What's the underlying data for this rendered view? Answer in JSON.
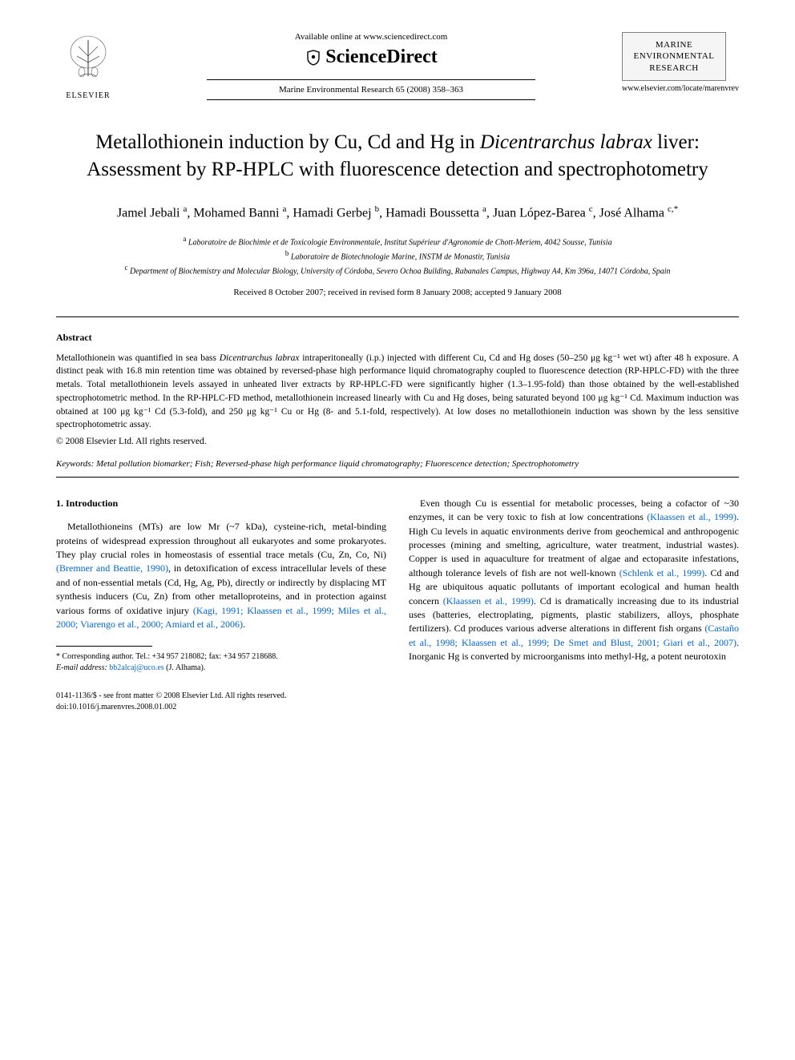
{
  "header": {
    "publisher_name": "ELSEVIER",
    "available_text": "Available online at www.sciencedirect.com",
    "sciencedirect_label": "ScienceDirect",
    "journal_reference": "Marine Environmental Research 65 (2008) 358–363",
    "journal_cover_title": "MARINE ENVIRONMENTAL RESEARCH",
    "journal_url": "www.elsevier.com/locate/marenvrev"
  },
  "article": {
    "title_pre_italic": "Metallothionein induction by Cu, Cd and Hg in ",
    "title_italic": "Dicentrarchus labrax",
    "title_post_italic": " liver: Assessment by RP-HPLC with fluorescence detection and spectrophotometry",
    "authors_html": "Jamel Jebali <sup>a</sup>, Mohamed Banni <sup>a</sup>, Hamadi Gerbej <sup>b</sup>, Hamadi Boussetta <sup>a</sup>, Juan López-Barea <sup>c</sup>, José Alhama <sup>c,*</sup>",
    "affiliations": [
      "a|Laboratoire de Biochimie et de Toxicologie Environmentale, Institut Supérieur d'Agronomie de Chott-Meriem, 4042 Sousse, Tunisia",
      "b|Laboratoire de Biotechnologie Marine, INSTM de Monastir, Tunisia",
      "c|Department of Biochemistry and Molecular Biology, University of Córdoba, Severo Ochoa Building, Rabanales Campus, Highway A4, Km 396a, 14071 Córdoba, Spain"
    ],
    "dates": "Received 8 October 2007; received in revised form 8 January 2008; accepted 9 January 2008"
  },
  "abstract": {
    "heading": "Abstract",
    "text": "Metallothionein was quantified in sea bass Dicentrarchus labrax intraperitoneally (i.p.) injected with different Cu, Cd and Hg doses (50–250 μg kg⁻¹ wet wt) after 48 h exposure. A distinct peak with 16.8 min retention time was obtained by reversed-phase high performance liquid chromatography coupled to fluorescence detection (RP-HPLC-FD) with the three metals. Total metallothionein levels assayed in unheated liver extracts by RP-HPLC-FD were significantly higher (1.3–1.95-fold) than those obtained by the well-established spectrophotometric method. In the RP-HPLC-FD method, metallothionein increased linearly with Cu and Hg doses, being saturated beyond 100 μg kg⁻¹ Cd. Maximum induction was obtained at 100 μg kg⁻¹ Cd (5.3-fold), and 250 μg kg⁻¹ Cu or Hg (8- and 5.1-fold, respectively). At low doses no metallothionein induction was shown by the less sensitive spectrophotometric assay.",
    "copyright": "© 2008 Elsevier Ltd. All rights reserved.",
    "keywords_label": "Keywords:",
    "keywords": "Metal pollution biomarker; Fish; Reversed-phase high performance liquid chromatography; Fluorescence detection; Spectrophotometry"
  },
  "body": {
    "section_heading": "1. Introduction",
    "col1_p1": "Metallothioneins (MTs) are low Mr (~7 kDa), cysteine-rich, metal-binding proteins of widespread expression throughout all eukaryotes and some prokaryotes. They play crucial roles in homeostasis of essential trace metals (Cu, Zn, Co, Ni) (Bremner and Beattie, 1990), in detoxification of excess intracellular levels of these and of non-essential metals (Cd, Hg, Ag, Pb), directly or indirectly by displacing MT synthesis inducers (Cu, Zn) from other metalloproteins, and in protection against various forms of oxidative injury (Kagi, 1991; Klaassen et al., 1999; Miles et al., 2000; Viarengo et al., 2000; Amiard et al., 2006).",
    "col2_p1": "Even though Cu is essential for metabolic processes, being a cofactor of ~30 enzymes, it can be very toxic to fish at low concentrations (Klaassen et al., 1999). High Cu levels in aquatic environments derive from geochemical and anthropogenic processes (mining and smelting, agriculture, water treatment, industrial wastes). Copper is used in aquaculture for treatment of algae and ectoparasite infestations, although tolerance levels of fish are not well-known (Schlenk et al., 1999). Cd and Hg are ubiquitous aquatic pollutants of important ecological and human health concern (Klaassen et al., 1999). Cd is dramatically increasing due to its industrial uses (batteries, electroplating, pigments, plastic stabilizers, alloys, phosphate fertilizers). Cd produces various adverse alterations in different fish organs (Castaño et al., 1998; Klaassen et al., 1999; De Smet and Blust, 2001; Giari et al., 2007). Inorganic Hg is converted by microorganisms into methyl-Hg, a potent neurotoxin"
  },
  "footnote": {
    "corresponding": "* Corresponding author. Tel.: +34 957 218082; fax: +34 957 218688.",
    "email_label": "E-mail address:",
    "email": "bb2alcaj@uco.es",
    "email_name": "(J. Alhama)."
  },
  "footer": {
    "line1": "0141-1136/$ - see front matter © 2008 Elsevier Ltd. All rights reserved.",
    "doi": "doi:10.1016/j.marenvres.2008.01.002"
  },
  "colors": {
    "link": "#0066cc",
    "text": "#000000",
    "cover_bg": "#f5f5f5",
    "cover_border": "#808080"
  }
}
